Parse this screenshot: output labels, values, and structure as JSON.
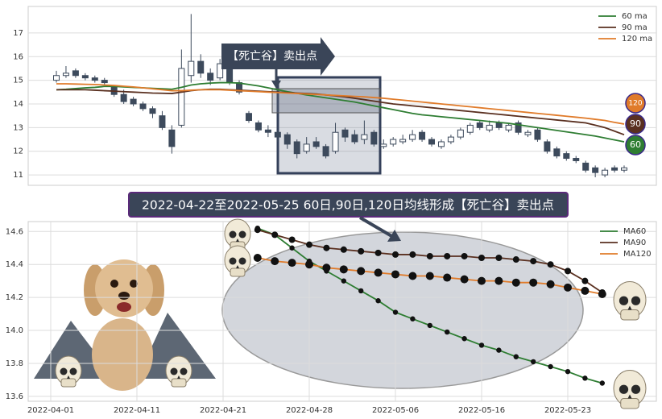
{
  "chart_data": [
    {
      "type": "candlestick",
      "open": [
        15.0,
        15.2,
        15.4,
        15.2,
        15.1,
        15.0,
        14.7,
        14.4,
        14.2,
        14.0,
        13.8,
        13.5,
        12.9,
        13.1,
        15.2,
        15.8,
        15.3,
        15.1,
        15.5,
        14.9,
        13.6,
        13.2,
        12.9,
        12.8,
        12.7,
        12.4,
        12.0,
        12.4,
        12.2,
        12.0,
        12.9,
        12.7,
        12.5,
        12.8,
        12.2,
        12.3,
        12.4,
        12.5,
        12.8,
        12.5,
        12.2,
        12.4,
        12.6,
        12.8,
        13.2,
        12.9,
        13.2,
        12.9,
        13.2,
        12.7,
        12.9,
        12.4,
        12.1,
        11.9,
        11.7,
        11.5,
        11.3,
        11.0,
        11.3,
        11.2
      ],
      "high": [
        15.4,
        15.6,
        15.5,
        15.3,
        15.2,
        15.1,
        14.8,
        14.6,
        14.3,
        14.1,
        13.9,
        13.7,
        13.1,
        16.3,
        17.8,
        16.1,
        15.5,
        15.9,
        15.6,
        15.0,
        13.7,
        13.3,
        13.1,
        12.9,
        12.8,
        12.5,
        12.6,
        12.6,
        12.3,
        13.2,
        13.0,
        12.9,
        13.3,
        12.9,
        12.5,
        12.6,
        12.7,
        12.9,
        12.9,
        12.6,
        12.5,
        12.7,
        13.0,
        13.2,
        13.3,
        13.3,
        13.3,
        13.2,
        13.3,
        12.9,
        13.0,
        12.5,
        12.2,
        12.0,
        11.8,
        11.6,
        11.4,
        11.3,
        11.4,
        11.4
      ],
      "low": [
        14.9,
        15.1,
        15.1,
        15.0,
        14.9,
        14.8,
        14.3,
        14.0,
        13.9,
        13.7,
        13.4,
        12.9,
        11.9,
        13.0,
        14.9,
        15.1,
        14.8,
        15.0,
        14.8,
        14.4,
        13.2,
        12.8,
        12.6,
        12.4,
        12.1,
        11.7,
        11.9,
        12.1,
        11.7,
        11.9,
        12.4,
        12.3,
        12.3,
        12.2,
        12.1,
        12.2,
        12.3,
        12.4,
        12.4,
        12.2,
        12.1,
        12.3,
        12.5,
        12.7,
        12.9,
        12.8,
        12.9,
        12.8,
        12.7,
        12.6,
        12.4,
        11.9,
        11.7,
        11.6,
        11.5,
        11.1,
        10.9,
        10.9,
        11.1,
        11.1
      ],
      "close": [
        15.2,
        15.3,
        15.2,
        15.1,
        15.0,
        14.9,
        14.4,
        14.1,
        14.0,
        13.8,
        13.6,
        13.0,
        12.2,
        15.5,
        15.8,
        15.3,
        15.0,
        15.7,
        14.9,
        14.5,
        13.3,
        12.9,
        12.8,
        12.6,
        12.3,
        11.9,
        12.3,
        12.2,
        11.8,
        12.8,
        12.6,
        12.4,
        12.7,
        12.3,
        12.3,
        12.5,
        12.5,
        12.7,
        12.5,
        12.3,
        12.4,
        12.6,
        12.9,
        13.1,
        13.0,
        13.1,
        13.0,
        13.1,
        12.8,
        12.8,
        12.5,
        12.0,
        11.8,
        11.7,
        11.6,
        11.2,
        11.1,
        11.2,
        11.2,
        11.3
      ],
      "up_color": "#ffffff",
      "down_color": "#3d4a5c",
      "series": [
        {
          "name": "60 ma",
          "color": "#2e7d32",
          "end_label": "60",
          "values": [
            14.6,
            14.62,
            14.65,
            14.68,
            14.7,
            14.74,
            14.74,
            14.72,
            14.7,
            14.68,
            14.66,
            14.64,
            14.62,
            14.7,
            14.8,
            14.85,
            14.88,
            14.9,
            14.9,
            14.88,
            14.82,
            14.76,
            14.68,
            14.6,
            14.52,
            14.45,
            14.38,
            14.32,
            14.26,
            14.2,
            14.14,
            14.08,
            14.0,
            13.92,
            13.84,
            13.76,
            13.68,
            13.6,
            13.54,
            13.5,
            13.46,
            13.42,
            13.38,
            13.34,
            13.3,
            13.26,
            13.22,
            13.18,
            13.12,
            13.06,
            13.0,
            12.94,
            12.88,
            12.82,
            12.76,
            12.7,
            12.64,
            12.56,
            12.48,
            12.4
          ]
        },
        {
          "name": "90 ma",
          "color": "#5a3020",
          "end_label": "90",
          "values": [
            14.6,
            14.6,
            14.6,
            14.6,
            14.58,
            14.56,
            14.54,
            14.52,
            14.5,
            14.48,
            14.46,
            14.45,
            14.44,
            14.5,
            14.56,
            14.6,
            14.62,
            14.62,
            14.6,
            14.58,
            14.56,
            14.54,
            14.52,
            14.5,
            14.48,
            14.46,
            14.44,
            14.42,
            14.38,
            14.34,
            14.3,
            14.24,
            14.18,
            14.12,
            14.06,
            14.0,
            13.96,
            13.92,
            13.88,
            13.84,
            13.8,
            13.76,
            13.72,
            13.68,
            13.64,
            13.6,
            13.56,
            13.52,
            13.48,
            13.44,
            13.4,
            13.36,
            13.32,
            13.28,
            13.24,
            13.2,
            13.1,
            13.0,
            12.85,
            12.7
          ]
        },
        {
          "name": "120 ma",
          "color": "#e07b2a",
          "end_label": "120",
          "values": [
            14.85,
            14.85,
            14.84,
            14.83,
            14.82,
            14.8,
            14.78,
            14.75,
            14.72,
            14.68,
            14.64,
            14.6,
            14.56,
            14.56,
            14.58,
            14.6,
            14.6,
            14.6,
            14.58,
            14.56,
            14.54,
            14.52,
            14.5,
            14.48,
            14.46,
            14.44,
            14.42,
            14.4,
            14.38,
            14.36,
            14.34,
            14.32,
            14.3,
            14.27,
            14.24,
            14.2,
            14.16,
            14.12,
            14.08,
            14.04,
            14.0,
            13.96,
            13.92,
            13.88,
            13.84,
            13.8,
            13.76,
            13.72,
            13.68,
            13.64,
            13.6,
            13.56,
            13.52,
            13.48,
            13.44,
            13.4,
            13.35,
            13.3,
            13.22,
            13.15
          ]
        }
      ],
      "ylim": [
        10.56,
        18.12
      ],
      "yticks": [
        11,
        12,
        13,
        14,
        15,
        16,
        17
      ],
      "grid": true,
      "legend": "upper right",
      "annotation": "【死亡谷】卖出点"
    },
    {
      "type": "line",
      "title": "2022-04-22至2022-05-25 60日,90日,120日均线形成【死亡谷】卖出点",
      "categories": [
        null,
        "2022-04-01",
        null,
        null,
        null,
        null,
        "2022-04-11",
        null,
        null,
        null,
        null,
        "2022-04-21",
        null,
        null,
        null,
        null,
        "2022-04-28",
        null,
        null,
        null,
        null,
        "2022-05-06",
        null,
        null,
        null,
        null,
        "2022-05-16",
        null,
        null,
        null,
        null,
        "2022-05-23",
        null,
        null
      ],
      "series": [
        {
          "name": "MA60",
          "color": "#2e7d32",
          "values": [
            null,
            null,
            null,
            null,
            null,
            null,
            null,
            null,
            null,
            null,
            null,
            null,
            null,
            14.62,
            14.58,
            14.5,
            14.42,
            14.36,
            14.3,
            14.24,
            14.18,
            14.11,
            14.07,
            14.03,
            13.99,
            13.95,
            13.91,
            13.88,
            13.84,
            13.81,
            13.78,
            13.75,
            13.71,
            13.68
          ]
        },
        {
          "name": "MA90",
          "color": "#5a3020",
          "values": [
            null,
            null,
            null,
            null,
            null,
            null,
            null,
            null,
            null,
            null,
            null,
            null,
            null,
            14.61,
            14.58,
            14.55,
            14.52,
            14.5,
            14.49,
            14.48,
            14.47,
            14.46,
            14.46,
            14.45,
            14.45,
            14.45,
            14.44,
            14.44,
            14.43,
            14.42,
            14.4,
            14.36,
            14.3,
            14.23
          ]
        },
        {
          "name": "MA120",
          "color": "#e07b2a",
          "values": [
            null,
            null,
            null,
            null,
            null,
            null,
            null,
            null,
            null,
            null,
            null,
            null,
            null,
            14.44,
            14.42,
            14.41,
            14.4,
            14.38,
            14.37,
            14.36,
            14.35,
            14.34,
            14.33,
            14.33,
            14.32,
            14.31,
            14.3,
            14.3,
            14.29,
            14.29,
            14.28,
            14.26,
            14.24,
            14.22
          ]
        }
      ],
      "ylim": [
        13.57,
        14.66
      ],
      "yticks": [
        13.6,
        13.8,
        {
          "value": 14,
          "label": "14.0"
        },
        14.2,
        14.4,
        14.6
      ],
      "grid": true,
      "legend": "upper right",
      "marker_color": "#111111"
    }
  ]
}
